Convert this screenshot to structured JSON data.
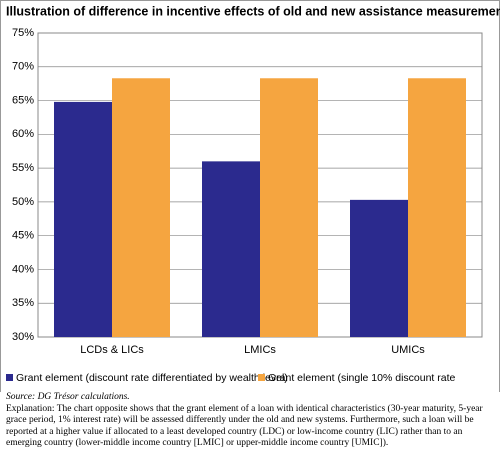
{
  "chart_data": {
    "type": "bar",
    "title": "Illustration of difference in incentive effects of old and new assistance measurement systems",
    "categories": [
      "LCDs & LICs",
      "LMICs",
      "UMICs"
    ],
    "series": [
      {
        "name": "Grant element (discount rate differentiated by wealth level)",
        "color": "#2b2a8e",
        "values": [
          64.8,
          56,
          50.3
        ]
      },
      {
        "name": "Grant element (single 10% discount rate",
        "color": "#f5a540",
        "values": [
          68.3,
          68.3,
          68.3
        ]
      }
    ],
    "ylim": [
      30,
      75
    ],
    "yticks": [
      {
        "value": 30,
        "label": "30%"
      },
      {
        "value": 35,
        "label": "35%"
      },
      {
        "value": 40,
        "label": "40%"
      },
      {
        "value": 45,
        "label": "45%"
      },
      {
        "value": 50,
        "label": "50%"
      },
      {
        "value": 55,
        "label": "55%"
      },
      {
        "value": 60,
        "label": "60%"
      },
      {
        "value": 65,
        "label": "65%"
      },
      {
        "value": 70,
        "label": "70%"
      },
      {
        "value": 75,
        "label": "75%"
      }
    ],
    "grid": true
  },
  "notes": {
    "source": "Source: DG Trésor calculations.",
    "explanation": "Explanation: The chart opposite shows that the grant element of a loan with identical characteristics (30-year maturity, 5-year grace period, 1% interest rate) will be assessed differently under the old and new systems. Furthermore, such a loan will be reported at a higher value if allocated to a least developed country (LDC) or low-income country (LIC) rather than to an emerging country (lower-middle income country [LMIC] or upper-middle income country [UMIC])."
  }
}
